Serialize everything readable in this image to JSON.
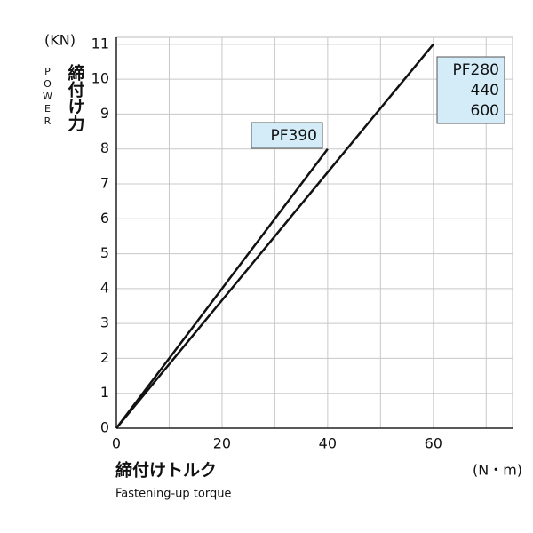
{
  "chart_data": {
    "type": "line",
    "y_unit": "(KN)",
    "y_label_en": "POWER",
    "y_label_jp": "締付け力",
    "x_label_jp": "締付けトルク",
    "x_label_en": "Fastening-up torque",
    "x_unit": "(N・m)",
    "xlim": [
      0,
      75
    ],
    "xticks": [
      0,
      20,
      40,
      60
    ],
    "xminor": [
      10,
      30,
      50,
      70
    ],
    "ylim": [
      0,
      11.2
    ],
    "yticks": [
      0,
      1,
      2,
      3,
      4,
      5,
      6,
      7,
      8,
      9,
      10,
      11
    ],
    "grid": true,
    "series": [
      {
        "name": [
          "PF390"
        ],
        "color": "#111111",
        "x": [
          0,
          40
        ],
        "values": [
          0,
          8
        ]
      },
      {
        "name": [
          "PF280",
          "440",
          "600"
        ],
        "color": "#111111",
        "x": [
          0,
          60
        ],
        "values": [
          0,
          11
        ]
      }
    ]
  }
}
